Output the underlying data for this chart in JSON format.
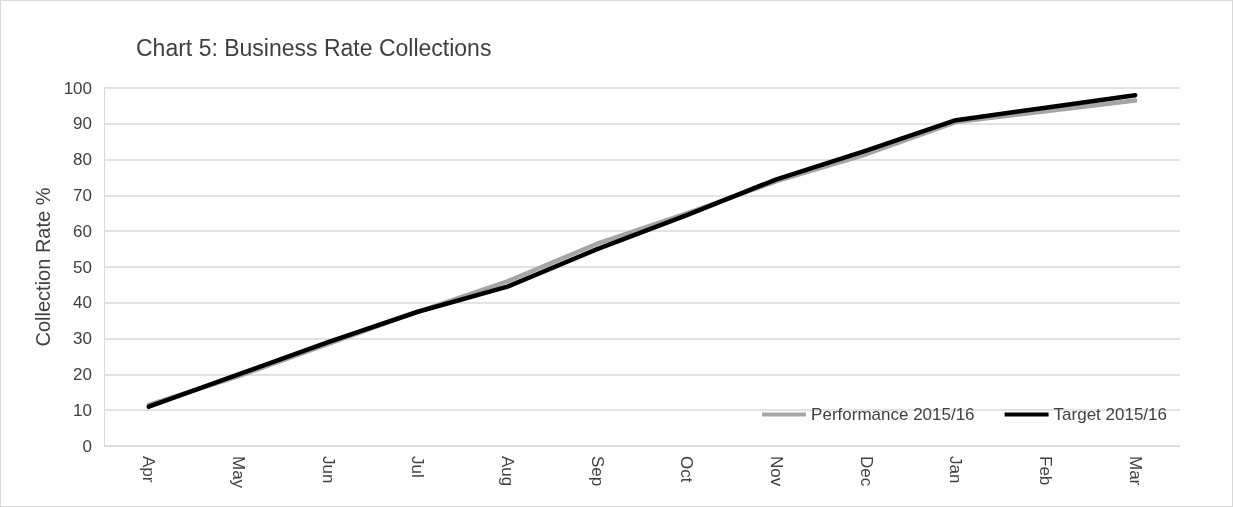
{
  "chart_data": {
    "type": "line",
    "title": "Chart 5: Business Rate Collections",
    "ylabel": "Collection Rate %",
    "categories": [
      "Apr",
      "May",
      "Jun",
      "Jul",
      "Aug",
      "Sep",
      "Oct",
      "Nov",
      "Dec",
      "Jan",
      "Feb",
      "Mar"
    ],
    "series": [
      {
        "name": "Performance 2015/16",
        "color": "#a5a5a5",
        "values": [
          11.5,
          19.5,
          28.5,
          37.5,
          46,
          56.5,
          65,
          74,
          81.5,
          90.5,
          93.5,
          96.5
        ]
      },
      {
        "name": "Target 2015/16",
        "color": "#000000",
        "values": [
          11,
          20,
          29,
          37.5,
          44.5,
          55,
          64.5,
          74.5,
          82.5,
          91,
          94.5,
          98
        ]
      }
    ],
    "ylim": [
      0,
      100
    ],
    "yticks": [
      0,
      10,
      20,
      30,
      40,
      50,
      60,
      70,
      80,
      90,
      100
    ],
    "grid": "y",
    "legend": "bottom right",
    "marker": "none",
    "line_style": "solid"
  }
}
